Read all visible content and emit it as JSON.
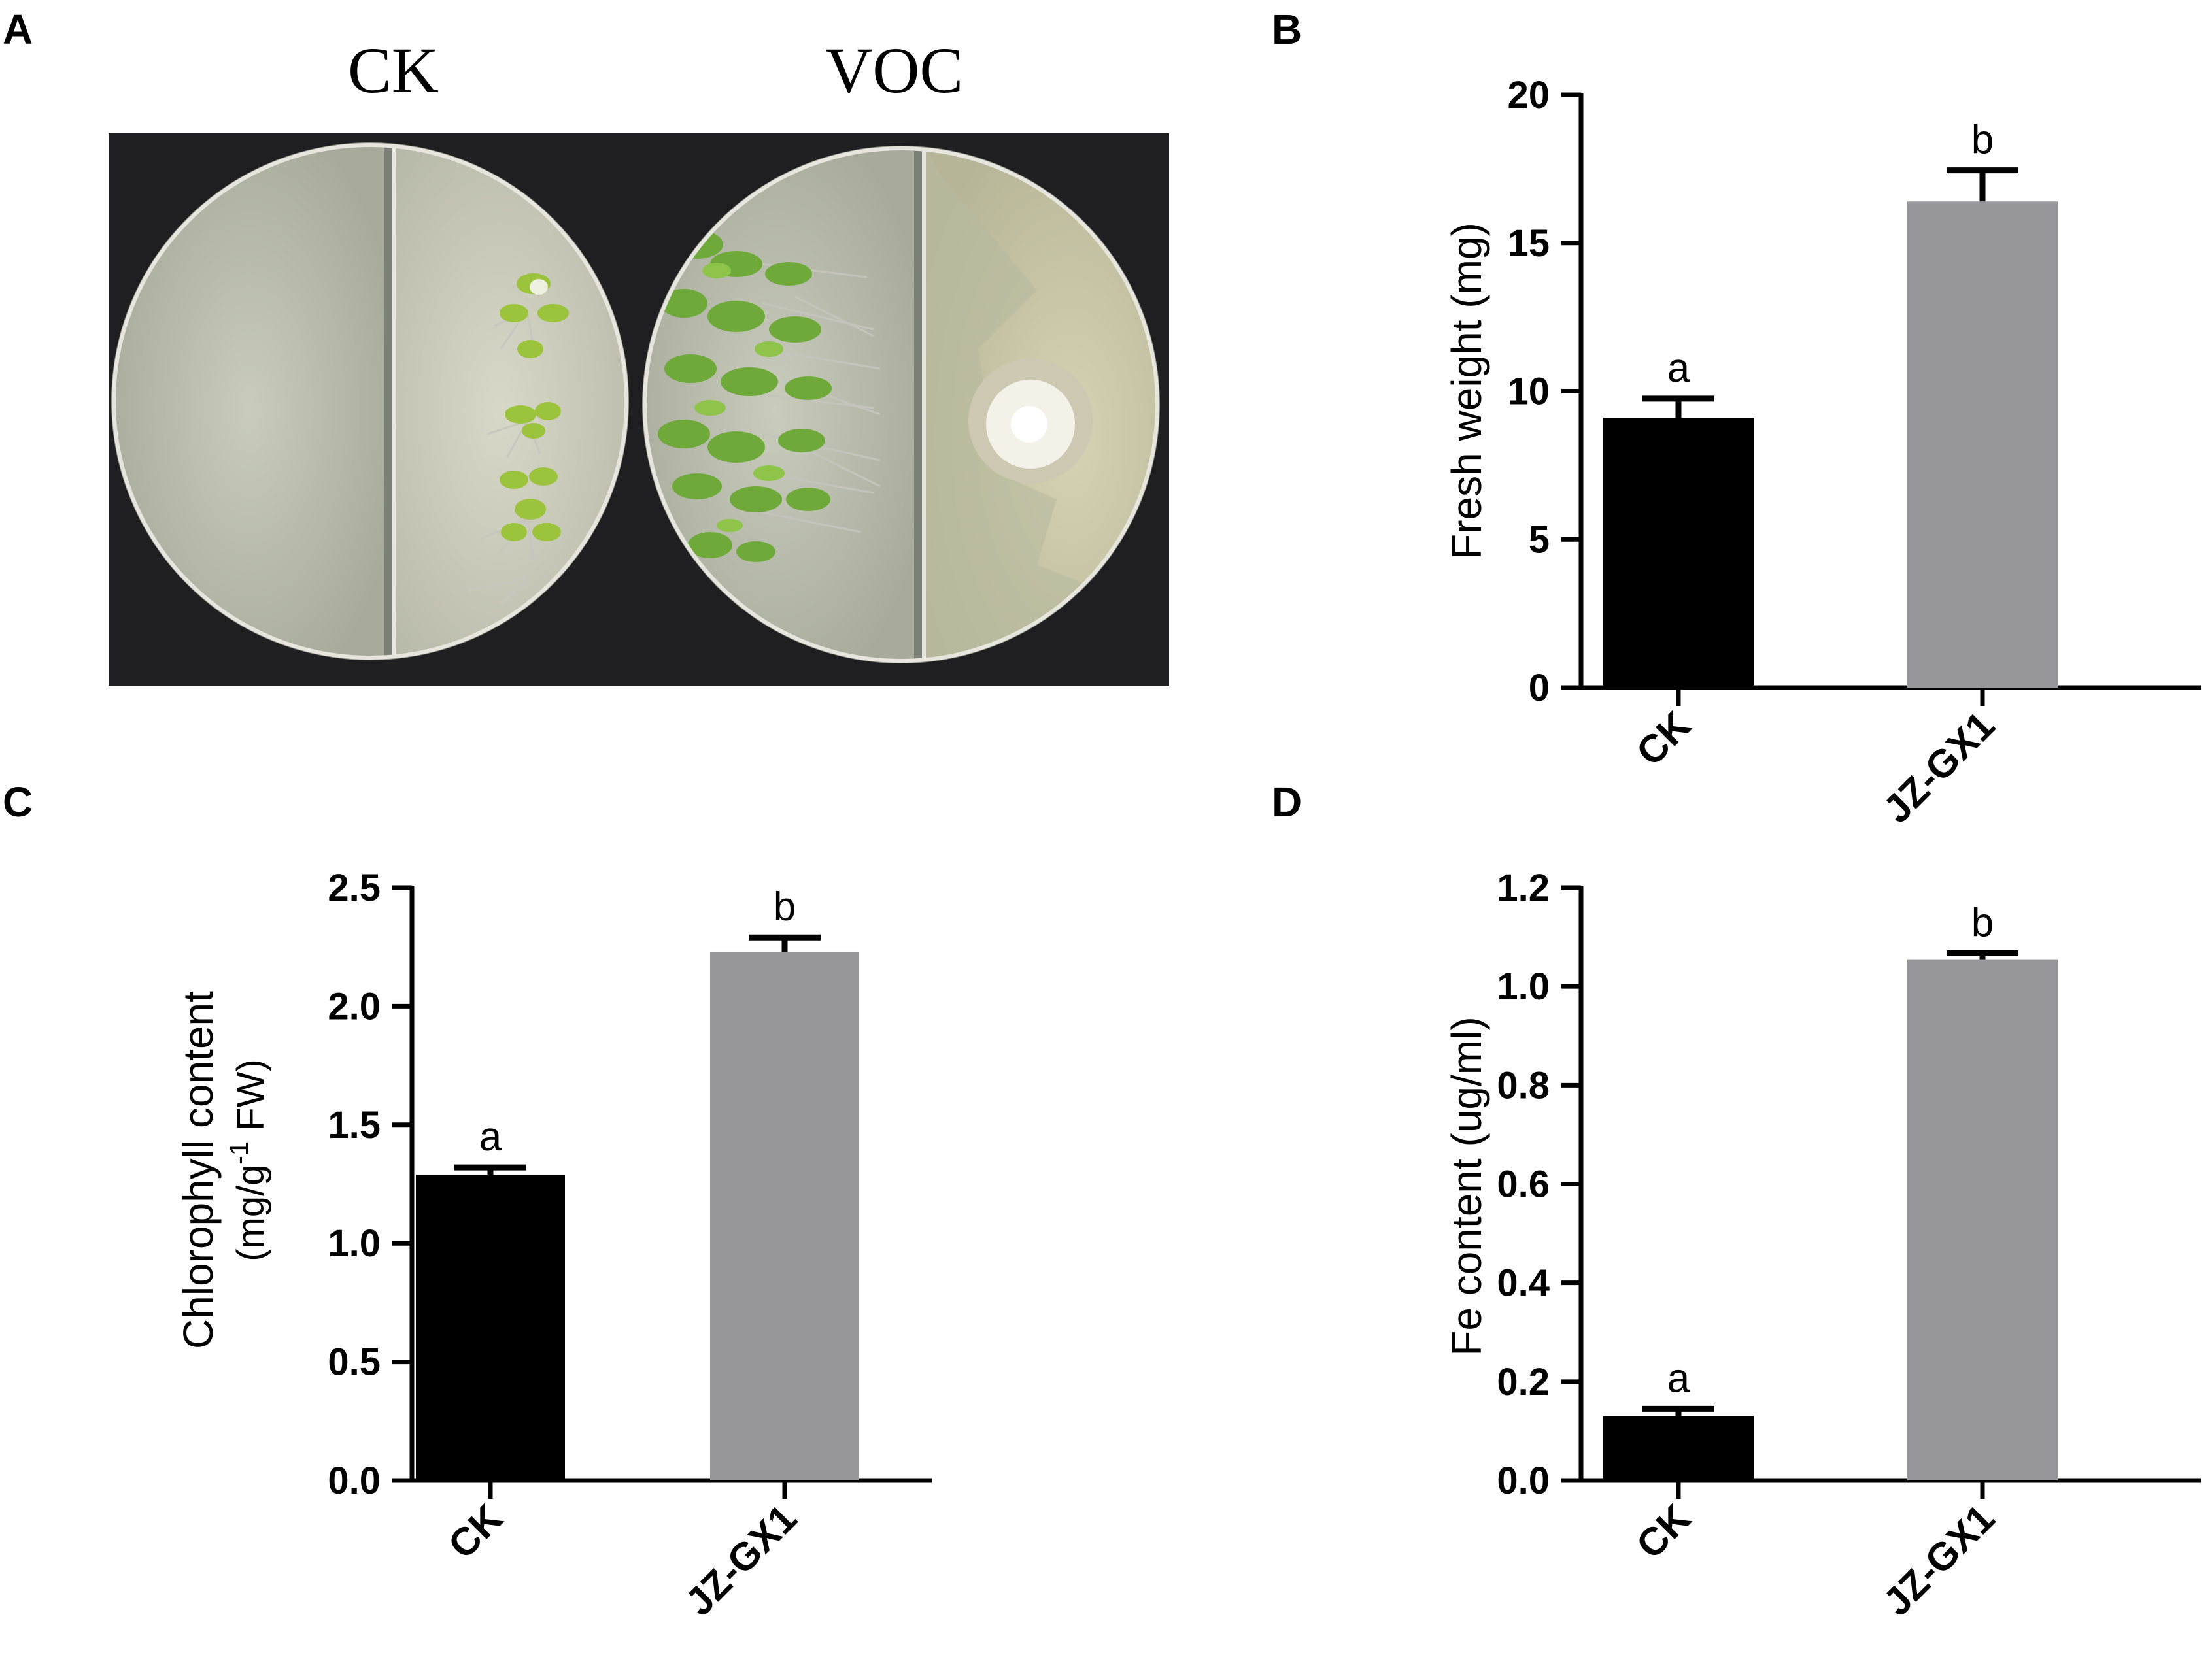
{
  "panels": {
    "A": {
      "letter": "A",
      "plate_labels": [
        "CK",
        "VOC"
      ]
    },
    "B": {
      "letter": "B"
    },
    "C": {
      "letter": "C"
    },
    "D": {
      "letter": "D"
    }
  },
  "colors": {
    "ck_bar": "#000000",
    "treatment_bar": "#98989c"
  },
  "chart_data": [
    {
      "panel": "B",
      "type": "bar",
      "categories": [
        "CK",
        "JZ-GX1"
      ],
      "values": [
        9.1,
        16.4
      ],
      "errors": [
        0.65,
        1.05
      ],
      "significance": [
        "a",
        "b"
      ],
      "ylabel": "Fresh weight (mg)",
      "ylim": [
        0,
        20
      ],
      "yticks": [
        0,
        5,
        10,
        15,
        20
      ],
      "ytick_labels": [
        "0",
        "5",
        "10",
        "15",
        "20"
      ]
    },
    {
      "panel": "C",
      "type": "bar",
      "categories": [
        "CK",
        "JZ-GX1"
      ],
      "values": [
        1.29,
        2.23
      ],
      "errors": [
        0.03,
        0.06
      ],
      "significance": [
        "a",
        "b"
      ],
      "ylabel_line1": "Chlorophyll content",
      "ylabel_line2_pre": "(mg/g",
      "ylabel_line2_sup": "-1",
      "ylabel_line2_post": " FW)",
      "ylim": [
        0,
        2.5
      ],
      "yticks": [
        0,
        0.5,
        1.0,
        1.5,
        2.0,
        2.5
      ],
      "ytick_labels": [
        "0.0",
        "0.5",
        "1.0",
        "1.5",
        "2.0",
        "2.5"
      ]
    },
    {
      "panel": "D",
      "type": "bar",
      "categories": [
        "CK",
        "JZ-GX1"
      ],
      "values": [
        0.13,
        1.055
      ],
      "errors": [
        0.015,
        0.012
      ],
      "significance": [
        "a",
        "b"
      ],
      "ylabel": "Fe content (ug/ml)",
      "ylim": [
        0,
        1.2
      ],
      "yticks": [
        0,
        0.2,
        0.4,
        0.6,
        0.8,
        1.0,
        1.2
      ],
      "ytick_labels": [
        "0.0",
        "0.2",
        "0.4",
        "0.6",
        "0.8",
        "1.0",
        "1.2"
      ]
    }
  ]
}
